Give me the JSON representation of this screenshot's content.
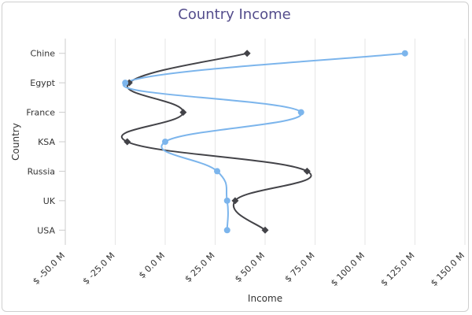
{
  "chart_data": {
    "type": "line",
    "title": "Country Income",
    "xlabel": "Income",
    "ylabel": "Country",
    "orientation": "inverted",
    "smooth": true,
    "categories": [
      "Chine",
      "Egypt",
      "France",
      "KSA",
      "Russia",
      "UK",
      "USA"
    ],
    "xlim": [
      -50,
      150
    ],
    "x_ticks": [
      -50,
      -25,
      0,
      25,
      50,
      75,
      100,
      125,
      150
    ],
    "x_tick_labels": [
      "$ -50.0 M",
      "$ -25.0 M",
      "$ 0.0 M",
      "$ 25.0 M",
      "$ 50.0 M",
      "$ 75.0 M",
      "$ 100.0 M",
      "$ 125.0 M",
      "$ 150.0 M"
    ],
    "grid": true,
    "legend": false,
    "series": [
      {
        "color": "#7cb5ec",
        "marker": "circle",
        "values": [
          120,
          -20,
          68,
          0,
          26,
          31,
          31
        ]
      },
      {
        "color": "#434348",
        "marker": "diamond",
        "values": [
          41,
          -18,
          9,
          -19,
          71,
          35,
          50
        ]
      }
    ]
  }
}
